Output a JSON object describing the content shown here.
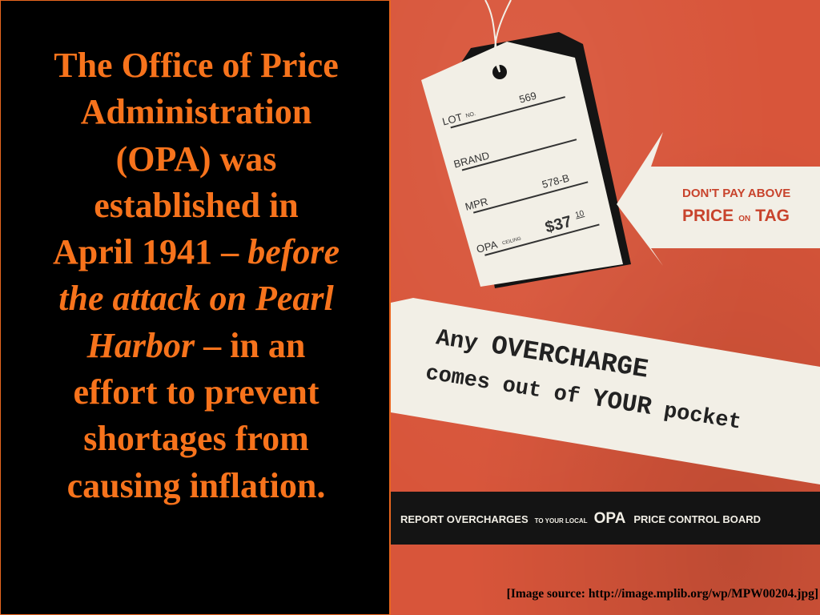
{
  "left": {
    "line1": "The Office of Price",
    "line2": "Administration",
    "line3": "(OPA) was",
    "line4": "established in",
    "line5a": "April 1941 – ",
    "line5b": "before",
    "line6": "the attack on Pearl",
    "line7a": "Harbor",
    "line7b": " – in an",
    "line8": "effort to prevent",
    "line9": "shortages from",
    "line10": "causing inflation."
  },
  "poster": {
    "tag_lot_label": "LOT",
    "tag_lot_no": "NO.",
    "tag_lot_value": "569",
    "tag_brand_label": "BRAND",
    "tag_mpr_label": "MPR",
    "tag_mpr_value": "578-B",
    "tag_opa_label": "OPA",
    "tag_ceiling_label": "CEILING",
    "tag_price_value": "$37",
    "tag_price_cents": "10",
    "arrow_line1": "DON'T PAY ABOVE",
    "arrow_line2a": "PRICE",
    "arrow_line2b": "ON",
    "arrow_line2c": "TAG",
    "banner_line1a": "Any ",
    "banner_line1b": "OVERCHARGE",
    "banner_line2a": "comes out of ",
    "banner_line2b": "YOUR",
    "banner_line2c": " pocket",
    "footer_a": "REPORT OVERCHARGES",
    "footer_b": "TO YOUR LOCAL",
    "footer_c": "OPA",
    "footer_d": "PRICE CONTROL BOARD"
  },
  "caption": "[Image source:  http://image.mplib.org/wp/MPW00204.jpg]",
  "colors": {
    "accent": "#f7731c",
    "poster_red": "#d8553a",
    "paper": "#f2efe6",
    "banner_red": "#c8432c",
    "ink": "#222222"
  }
}
